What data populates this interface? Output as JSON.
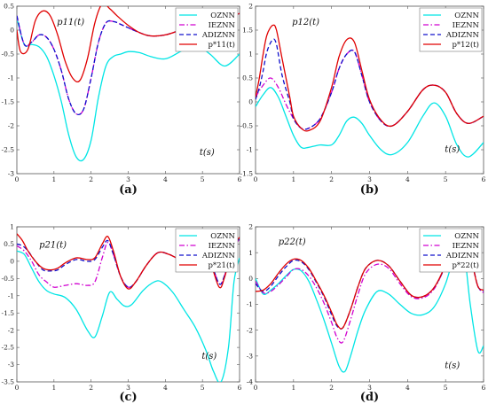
{
  "chart_data": [
    {
      "type": "line",
      "caption": "(a)",
      "annotation": "p11(t)",
      "time_label": "t(s)",
      "xlim": [
        0,
        6
      ],
      "ylim": [
        -3,
        0.5
      ],
      "xticks": [
        0,
        1,
        2,
        3,
        4,
        5,
        6
      ],
      "yticks": [
        0.5,
        0,
        -0.5,
        -1,
        -1.5,
        -2,
        -2.5,
        -3
      ],
      "legend_position": "top-right",
      "series": [
        {
          "name": "OZNN",
          "color": "#00e5e5",
          "dash": "solid",
          "x": [
            0,
            0.2,
            0.4,
            0.6,
            0.8,
            1.0,
            1.2,
            1.4,
            1.6,
            1.8,
            2.0,
            2.2,
            2.4,
            2.6,
            2.8,
            3.0,
            3.3,
            3.6,
            4.0,
            4.4,
            4.8,
            5.2,
            5.6,
            6.0
          ],
          "y": [
            0.25,
            -0.3,
            -0.3,
            -0.35,
            -0.55,
            -0.95,
            -1.5,
            -2.2,
            -2.65,
            -2.7,
            -2.3,
            -1.4,
            -0.75,
            -0.55,
            -0.5,
            -0.45,
            -0.47,
            -0.55,
            -0.6,
            -0.45,
            -0.3,
            -0.5,
            -0.75,
            -0.5
          ]
        },
        {
          "name": "IEZNN",
          "color": "#d000d0",
          "dash": "dashdot",
          "x": [
            0,
            0.2,
            0.4,
            0.6,
            0.8,
            1.0,
            1.2,
            1.4,
            1.6,
            1.8,
            2.0,
            2.2,
            2.4,
            2.6,
            2.8,
            3.0,
            3.3,
            3.6,
            4.0,
            4.4,
            4.8,
            5.2,
            5.6,
            6.0
          ],
          "y": [
            0.3,
            -0.3,
            -0.25,
            -0.1,
            -0.15,
            -0.4,
            -0.85,
            -1.45,
            -1.75,
            -1.65,
            -1.0,
            -0.25,
            0.15,
            0.18,
            0.12,
            0.05,
            -0.05,
            -0.12,
            -0.1,
            0.0,
            0.1,
            0.15,
            0.22,
            0.35
          ]
        },
        {
          "name": "ADIZNN",
          "color": "#1010cc",
          "dash": "dashed",
          "x": [
            0,
            0.2,
            0.4,
            0.6,
            0.8,
            1.0,
            1.2,
            1.4,
            1.6,
            1.8,
            2.0,
            2.2,
            2.4,
            2.6,
            2.8,
            3.0,
            3.3,
            3.6,
            4.0,
            4.4,
            4.8,
            5.2,
            5.6,
            6.0
          ],
          "y": [
            0.3,
            -0.3,
            -0.25,
            -0.1,
            -0.15,
            -0.4,
            -0.85,
            -1.45,
            -1.75,
            -1.65,
            -1.0,
            -0.25,
            0.15,
            0.18,
            0.12,
            0.05,
            -0.05,
            -0.12,
            -0.1,
            0.0,
            0.1,
            0.15,
            0.22,
            0.35
          ]
        },
        {
          "name": "p*11(t)",
          "color": "#e00000",
          "dash": "solid",
          "x": [
            0,
            0.1,
            0.3,
            0.5,
            0.7,
            0.9,
            1.1,
            1.3,
            1.5,
            1.7,
            1.9,
            2.1,
            2.3,
            2.5,
            2.7,
            3.0,
            3.3,
            3.6,
            4.0,
            4.4,
            4.8,
            5.2,
            5.6,
            6.0
          ],
          "y": [
            0.0,
            -0.45,
            -0.4,
            0.2,
            0.4,
            0.3,
            -0.1,
            -0.65,
            -1.0,
            -1.05,
            -0.6,
            0.15,
            0.55,
            0.45,
            0.3,
            0.1,
            -0.05,
            -0.12,
            -0.1,
            0.0,
            0.1,
            0.15,
            0.22,
            0.35
          ]
        }
      ]
    },
    {
      "type": "line",
      "caption": "(b)",
      "annotation": "p12(t)",
      "time_label": "t(s)",
      "xlim": [
        0,
        6
      ],
      "ylim": [
        -1.5,
        2
      ],
      "xticks": [
        0,
        1,
        2,
        3,
        4,
        5,
        6
      ],
      "yticks": [
        2,
        1.5,
        1,
        0.5,
        0,
        -0.5,
        -1,
        -1.5
      ],
      "legend_position": "top-right",
      "series": [
        {
          "name": "OZNN",
          "color": "#00e5e5",
          "dash": "solid",
          "x": [
            0,
            0.2,
            0.4,
            0.6,
            0.8,
            1.0,
            1.2,
            1.4,
            1.7,
            2.0,
            2.2,
            2.4,
            2.6,
            2.8,
            3.0,
            3.3,
            3.6,
            4.0,
            4.4,
            4.7,
            5.0,
            5.3,
            5.6,
            6.0
          ],
          "y": [
            -0.1,
            0.15,
            0.3,
            0.1,
            -0.3,
            -0.7,
            -0.95,
            -0.95,
            -0.9,
            -0.9,
            -0.7,
            -0.4,
            -0.32,
            -0.45,
            -0.7,
            -1.0,
            -1.1,
            -0.85,
            -0.3,
            -0.02,
            -0.3,
            -0.9,
            -1.15,
            -0.85
          ]
        },
        {
          "name": "IEZNN",
          "color": "#d000d0",
          "dash": "dashdot",
          "x": [
            0,
            0.2,
            0.4,
            0.6,
            0.8,
            1.0,
            1.2,
            1.4,
            1.7,
            2.0,
            2.2,
            2.4,
            2.6,
            2.8,
            3.0,
            3.3,
            3.6,
            4.0,
            4.4,
            4.7,
            5.0,
            5.3,
            5.6,
            6.0
          ],
          "y": [
            0.1,
            0.35,
            0.5,
            0.3,
            -0.05,
            -0.35,
            -0.55,
            -0.55,
            -0.35,
            0.2,
            0.7,
            1.0,
            1.05,
            0.55,
            0.0,
            -0.4,
            -0.5,
            -0.2,
            0.25,
            0.35,
            0.2,
            -0.25,
            -0.45,
            -0.3
          ]
        },
        {
          "name": "ADIZNN",
          "color": "#1010cc",
          "dash": "dashed",
          "x": [
            0,
            0.1,
            0.2,
            0.3,
            0.45,
            0.55,
            0.7,
            0.9,
            1.0,
            1.2,
            1.4,
            1.7,
            2.0,
            2.2,
            2.4,
            2.6,
            2.8,
            3.0,
            3.3,
            3.6,
            4.0,
            4.4,
            4.7,
            5.0,
            5.3,
            5.6,
            6.0
          ],
          "y": [
            0.05,
            0.3,
            0.65,
            1.05,
            1.3,
            1.2,
            0.55,
            0.0,
            -0.35,
            -0.55,
            -0.55,
            -0.35,
            0.2,
            0.7,
            1.0,
            1.05,
            0.55,
            0.0,
            -0.4,
            -0.5,
            -0.2,
            0.25,
            0.35,
            0.2,
            -0.25,
            -0.45,
            -0.3
          ]
        },
        {
          "name": "p*12(t)",
          "color": "#e00000",
          "dash": "solid",
          "x": [
            0,
            0.1,
            0.2,
            0.3,
            0.45,
            0.55,
            0.7,
            0.9,
            1.0,
            1.2,
            1.4,
            1.7,
            2.0,
            2.2,
            2.4,
            2.6,
            2.8,
            3.0,
            3.3,
            3.6,
            4.0,
            4.4,
            4.7,
            5.0,
            5.3,
            5.6,
            6.0
          ],
          "y": [
            0.1,
            0.5,
            1.0,
            1.4,
            1.6,
            1.5,
            0.9,
            0.1,
            -0.3,
            -0.55,
            -0.6,
            -0.4,
            0.3,
            0.95,
            1.3,
            1.25,
            0.65,
            0.05,
            -0.38,
            -0.5,
            -0.2,
            0.25,
            0.35,
            0.2,
            -0.25,
            -0.45,
            -0.3
          ]
        }
      ]
    },
    {
      "type": "line",
      "caption": "(c)",
      "annotation": "p21(t)",
      "time_label": "t(s)",
      "xlim": [
        0,
        6
      ],
      "ylim": [
        -3.5,
        1
      ],
      "xticks": [
        0,
        1,
        2,
        3,
        4,
        5,
        6
      ],
      "yticks": [
        1,
        0.5,
        0,
        -0.5,
        -1,
        -1.5,
        -2,
        -2.5,
        -3,
        -3.5
      ],
      "legend_position": "top-right",
      "series": [
        {
          "name": "OZNN",
          "color": "#00e5e5",
          "dash": "solid",
          "x": [
            0,
            0.2,
            0.4,
            0.6,
            0.8,
            1.0,
            1.3,
            1.6,
            1.9,
            2.1,
            2.3,
            2.5,
            2.7,
            2.9,
            3.1,
            3.4,
            3.7,
            3.9,
            4.2,
            4.5,
            4.8,
            5.1,
            5.3,
            5.5,
            5.7,
            5.85,
            6.0
          ],
          "y": [
            0.3,
            0.2,
            -0.2,
            -0.6,
            -0.85,
            -0.95,
            -1.05,
            -1.4,
            -2.0,
            -2.2,
            -1.6,
            -0.9,
            -1.1,
            -1.3,
            -1.25,
            -0.85,
            -0.6,
            -0.6,
            -0.9,
            -1.4,
            -1.9,
            -2.6,
            -3.2,
            -3.5,
            -2.5,
            -0.6,
            0.1
          ]
        },
        {
          "name": "IEZNN",
          "color": "#d000d0",
          "dash": "dashdot",
          "x": [
            0,
            0.2,
            0.4,
            0.6,
            0.8,
            1.0,
            1.3,
            1.6,
            1.9,
            2.1,
            2.3,
            2.45,
            2.6,
            2.8,
            3.0,
            3.2,
            3.5,
            3.8,
            4.1,
            4.4,
            4.7,
            5.0,
            5.2,
            5.45,
            5.6,
            5.8,
            6.0
          ],
          "y": [
            0.45,
            0.3,
            0.0,
            -0.4,
            -0.6,
            -0.75,
            -0.7,
            -0.65,
            -0.7,
            -0.6,
            0.1,
            0.55,
            0.2,
            -0.45,
            -0.75,
            -0.6,
            -0.1,
            0.25,
            0.2,
            0.05,
            0.05,
            0.2,
            0.05,
            -0.65,
            -0.4,
            0.3,
            0.65
          ]
        },
        {
          "name": "ADIZNN",
          "color": "#1010cc",
          "dash": "dashed",
          "x": [
            0,
            0.15,
            0.3,
            0.5,
            0.7,
            0.9,
            1.1,
            1.3,
            1.6,
            1.9,
            2.1,
            2.3,
            2.45,
            2.6,
            2.8,
            3.0,
            3.2,
            3.5,
            3.8,
            4.1,
            4.4,
            4.7,
            5.0,
            5.2,
            5.45,
            5.6,
            5.8,
            6.0
          ],
          "y": [
            0.5,
            0.45,
            0.3,
            0.0,
            -0.25,
            -0.28,
            -0.25,
            -0.1,
            0.05,
            0.0,
            0.05,
            0.4,
            0.6,
            0.2,
            -0.45,
            -0.75,
            -0.6,
            -0.1,
            0.25,
            0.2,
            0.05,
            0.05,
            0.2,
            0.05,
            -0.65,
            -0.4,
            0.3,
            0.65
          ]
        },
        {
          "name": "p*21(t)",
          "color": "#e00000",
          "dash": "solid",
          "x": [
            0,
            0.15,
            0.3,
            0.5,
            0.7,
            0.9,
            1.1,
            1.3,
            1.6,
            1.9,
            2.1,
            2.3,
            2.45,
            2.6,
            2.8,
            3.0,
            3.2,
            3.5,
            3.8,
            4.1,
            4.4,
            4.7,
            5.0,
            5.2,
            5.45,
            5.6,
            5.8,
            6.0
          ],
          "y": [
            0.8,
            0.6,
            0.3,
            0.0,
            -0.2,
            -0.25,
            -0.2,
            -0.05,
            0.1,
            0.05,
            0.1,
            0.5,
            0.72,
            0.3,
            -0.45,
            -0.8,
            -0.6,
            -0.1,
            0.25,
            0.2,
            0.05,
            0.05,
            0.2,
            0.0,
            -0.75,
            -0.45,
            0.35,
            0.7
          ]
        }
      ]
    },
    {
      "type": "line",
      "caption": "(d)",
      "annotation": "p22(t)",
      "time_label": "t(s)",
      "xlim": [
        0,
        6
      ],
      "ylim": [
        -4,
        2
      ],
      "xticks": [
        0,
        1,
        2,
        3,
        4,
        5,
        6
      ],
      "yticks": [
        2,
        1,
        0,
        -1,
        -2,
        -3,
        -4
      ],
      "legend_position": "top-right",
      "series": [
        {
          "name": "OZNN",
          "color": "#00e5e5",
          "dash": "solid",
          "x": [
            0,
            0.2,
            0.4,
            0.6,
            0.8,
            1.0,
            1.2,
            1.4,
            1.6,
            1.8,
            2.0,
            2.2,
            2.35,
            2.5,
            2.7,
            2.9,
            3.2,
            3.5,
            3.8,
            4.1,
            4.4,
            4.7,
            5.0,
            5.25,
            5.45,
            5.65,
            5.85,
            6.0
          ],
          "y": [
            0.0,
            -0.6,
            -0.45,
            -0.2,
            0.1,
            0.35,
            0.3,
            -0.1,
            -0.8,
            -1.6,
            -2.5,
            -3.4,
            -3.6,
            -3.0,
            -2.0,
            -1.2,
            -0.5,
            -0.6,
            -1.0,
            -1.35,
            -1.4,
            -1.1,
            -0.2,
            1.0,
            1.4,
            -1.0,
            -2.8,
            -2.6
          ]
        },
        {
          "name": "IEZNN",
          "color": "#d000d0",
          "dash": "dashdot",
          "x": [
            0,
            0.2,
            0.4,
            0.6,
            0.8,
            1.0,
            1.2,
            1.4,
            1.6,
            1.8,
            2.0,
            2.15,
            2.3,
            2.5,
            2.7,
            2.9,
            3.2,
            3.5,
            3.8,
            4.1,
            4.4,
            4.7,
            5.0,
            5.3,
            5.5,
            5.7,
            5.85,
            6.0
          ],
          "y": [
            -0.1,
            -0.55,
            -0.5,
            -0.25,
            0.05,
            0.35,
            0.35,
            0.1,
            -0.35,
            -0.95,
            -1.7,
            -2.3,
            -2.45,
            -1.6,
            -0.6,
            0.2,
            0.55,
            0.4,
            -0.2,
            -0.7,
            -0.75,
            -0.4,
            0.5,
            1.5,
            1.5,
            0.6,
            -0.3,
            -0.55
          ]
        },
        {
          "name": "ADIZNN",
          "color": "#1010cc",
          "dash": "dashed",
          "x": [
            0,
            0.2,
            0.4,
            0.6,
            0.8,
            1.0,
            1.2,
            1.4,
            1.6,
            1.8,
            2.0,
            2.15,
            2.3,
            2.5,
            2.7,
            2.9,
            3.2,
            3.5,
            3.8,
            4.1,
            4.4,
            4.7,
            5.0,
            5.3,
            5.5,
            5.7,
            5.85,
            6.0
          ],
          "y": [
            -0.2,
            -0.5,
            -0.3,
            0.1,
            0.45,
            0.7,
            0.65,
            0.35,
            -0.15,
            -0.7,
            -1.4,
            -1.85,
            -1.9,
            -1.2,
            -0.3,
            0.4,
            0.7,
            0.5,
            -0.1,
            -0.65,
            -0.7,
            -0.35,
            0.5,
            1.7,
            1.5,
            0.6,
            -0.3,
            -0.5
          ]
        },
        {
          "name": "p*22(t)",
          "color": "#e00000",
          "dash": "solid",
          "x": [
            0,
            0.2,
            0.4,
            0.6,
            0.8,
            1.0,
            1.2,
            1.4,
            1.6,
            1.8,
            2.0,
            2.15,
            2.3,
            2.5,
            2.7,
            2.9,
            3.2,
            3.5,
            3.8,
            4.1,
            4.4,
            4.7,
            5.0,
            5.3,
            5.5,
            5.7,
            5.85,
            6.0
          ],
          "y": [
            -0.5,
            -0.45,
            -0.2,
            0.2,
            0.55,
            0.75,
            0.7,
            0.4,
            -0.1,
            -0.65,
            -1.3,
            -1.8,
            -1.9,
            -1.2,
            -0.3,
            0.4,
            0.7,
            0.5,
            -0.1,
            -0.65,
            -0.7,
            -0.35,
            0.55,
            1.85,
            1.6,
            0.6,
            -0.3,
            -0.45
          ]
        }
      ]
    }
  ]
}
